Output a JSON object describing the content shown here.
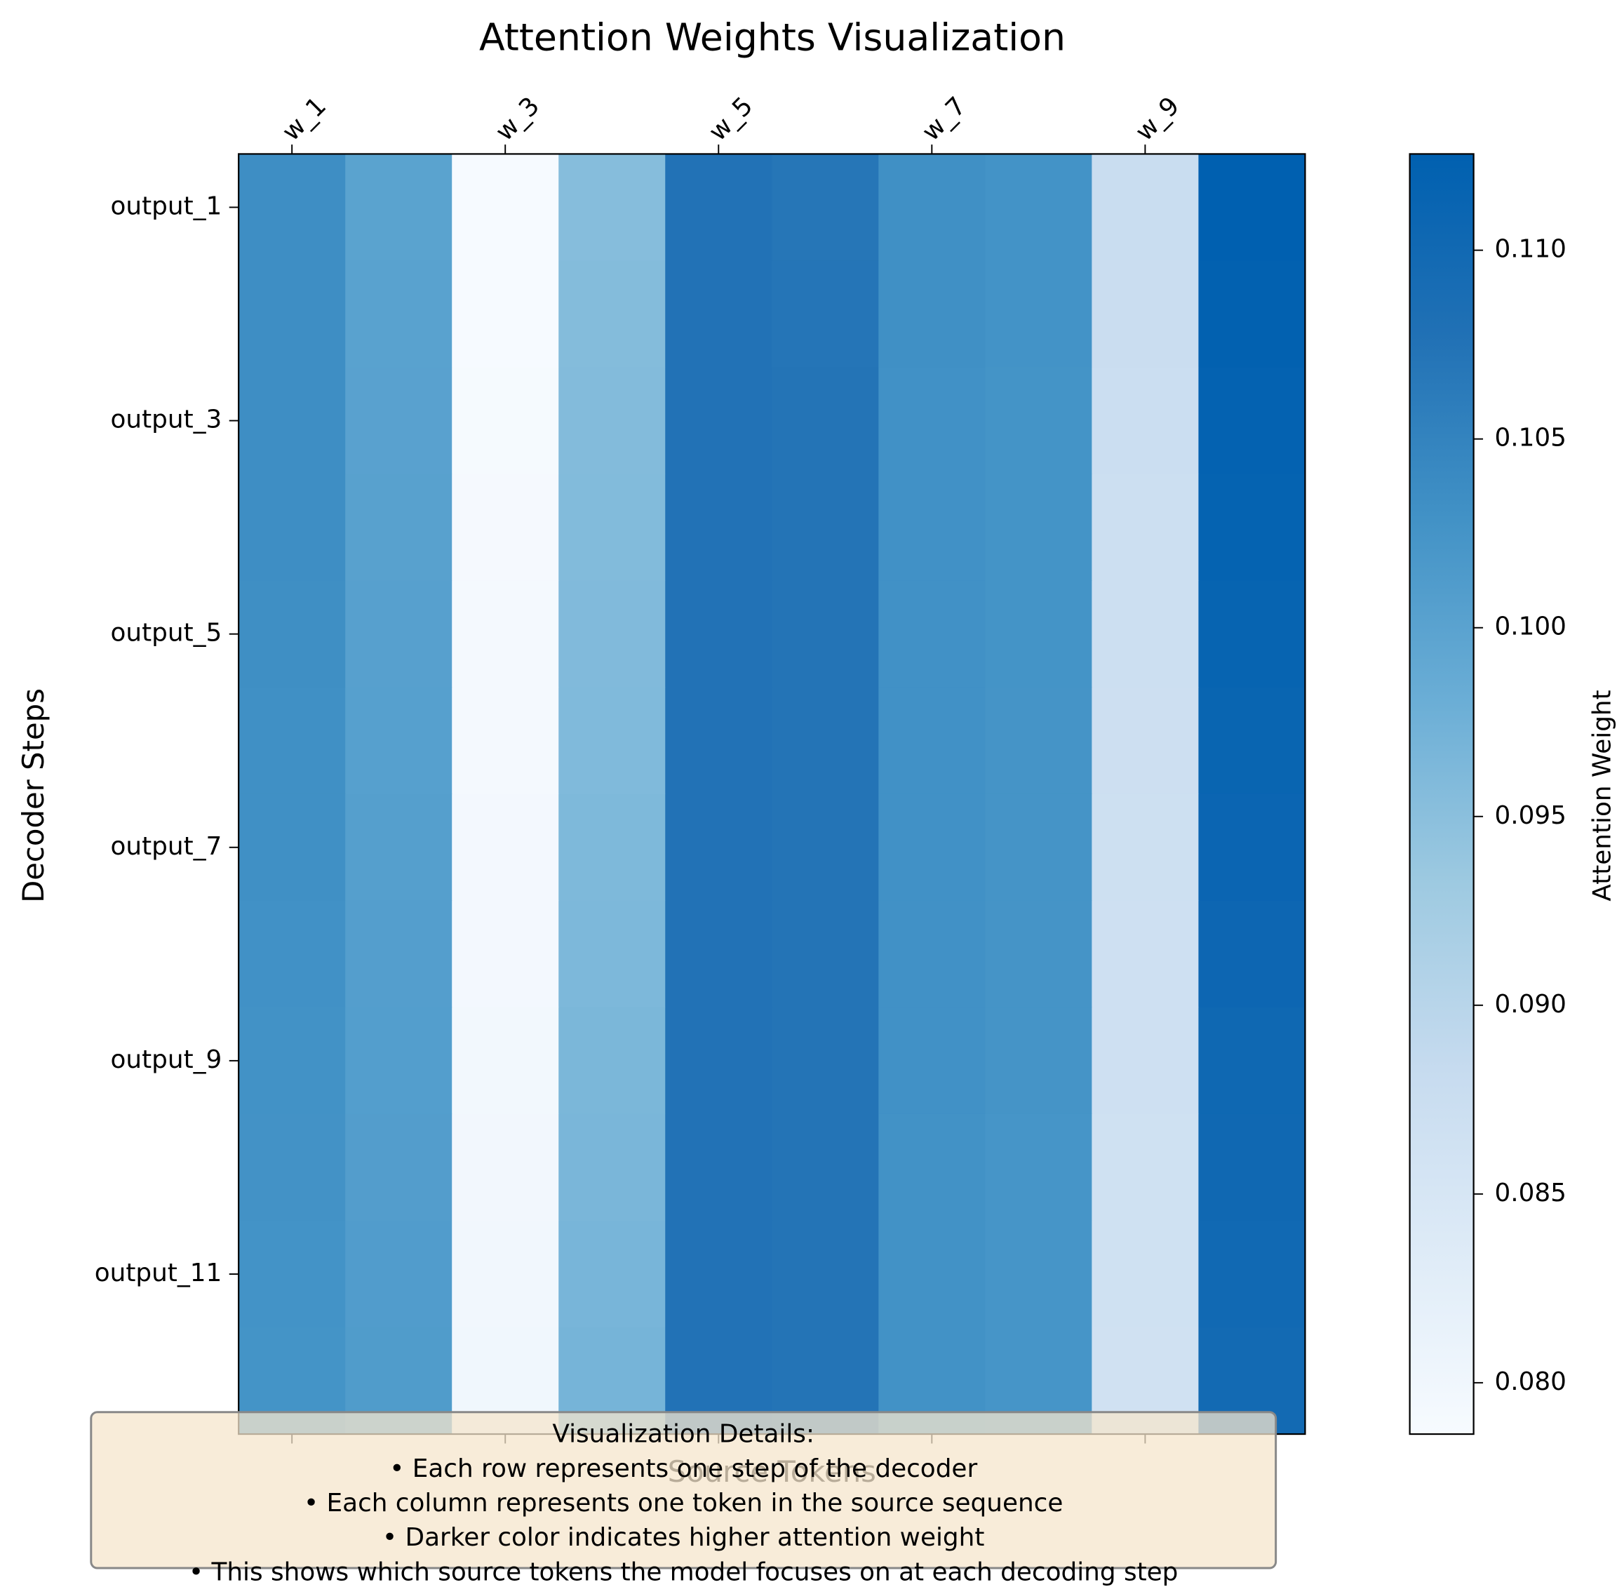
{
  "chart_data": {
    "type": "heatmap",
    "title": "Attention Weights Visualization",
    "x_label": "Source Tokens",
    "y_label": "Decoder Steps",
    "x_categories": [
      "w_1",
      null,
      "w_3",
      null,
      "w_5",
      null,
      "w_7",
      null,
      "w_9",
      null
    ],
    "y_categories": [
      "output_1",
      null,
      "output_3",
      null,
      "output_5",
      null,
      "output_7",
      null,
      "output_9",
      null,
      "output_11",
      null
    ],
    "values": [
      [
        0.1035,
        0.1,
        0.0789,
        0.0955,
        0.1075,
        0.107,
        0.1031,
        0.1027,
        0.0877,
        0.1125
      ],
      [
        0.1035,
        0.1001,
        0.0789,
        0.0956,
        0.1075,
        0.1071,
        0.1031,
        0.1027,
        0.0876,
        0.1123
      ],
      [
        0.1034,
        0.1002,
        0.079,
        0.0957,
        0.1075,
        0.1073,
        0.103,
        0.1026,
        0.0874,
        0.112
      ],
      [
        0.1034,
        0.1003,
        0.0791,
        0.0958,
        0.1075,
        0.1073,
        0.103,
        0.1026,
        0.0872,
        0.1118
      ],
      [
        0.1033,
        0.1004,
        0.0792,
        0.0959,
        0.1075,
        0.1073,
        0.103,
        0.1026,
        0.0871,
        0.1115
      ],
      [
        0.1032,
        0.1005,
        0.0793,
        0.096,
        0.1075,
        0.1073,
        0.103,
        0.1025,
        0.087,
        0.1112
      ],
      [
        0.1031,
        0.1006,
        0.0794,
        0.0962,
        0.1075,
        0.1073,
        0.103,
        0.1025,
        0.0869,
        0.111
      ],
      [
        0.103,
        0.1007,
        0.0795,
        0.0963,
        0.1075,
        0.1073,
        0.103,
        0.1025,
        0.0868,
        0.1107
      ],
      [
        0.1029,
        0.1008,
        0.0796,
        0.0965,
        0.1075,
        0.1073,
        0.103,
        0.1025,
        0.0867,
        0.1104
      ],
      [
        0.1028,
        0.1009,
        0.0797,
        0.0966,
        0.1075,
        0.1073,
        0.1029,
        0.1024,
        0.0866,
        0.1102
      ],
      [
        0.1027,
        0.1011,
        0.0798,
        0.0968,
        0.1075,
        0.1073,
        0.1029,
        0.1024,
        0.0865,
        0.11
      ],
      [
        0.1026,
        0.1012,
        0.0799,
        0.097,
        0.1075,
        0.1073,
        0.1029,
        0.1024,
        0.0864,
        0.1098
      ]
    ],
    "colorbar": {
      "label": "Attention Weight",
      "lim": [
        0.07864,
        0.11255
      ],
      "ticks": [
        {
          "value": 0.08,
          "label": "0.080"
        },
        0.085,
        {
          "value": 0.09,
          "label": "0.090"
        },
        0.095,
        {
          "value": 0.1,
          "label": "0.100"
        },
        0.105,
        {
          "value": 0.11,
          "label": "0.110"
        }
      ],
      "colors": [
        "#f7fbff",
        "#deebf7",
        "#c6dbef",
        "#9ecae1",
        "#6baed6",
        "#4292c6",
        "#2171b5",
        "#0060b0"
      ]
    },
    "annotation": {
      "title": "Visualization Details:",
      "lines": [
        "• Each row represents one step of the decoder",
        "• Each column represents one token in the source sequence",
        "• Darker color indicates higher attention weight",
        "• This shows which source tokens the model focuses on at each decoding step"
      ]
    }
  }
}
